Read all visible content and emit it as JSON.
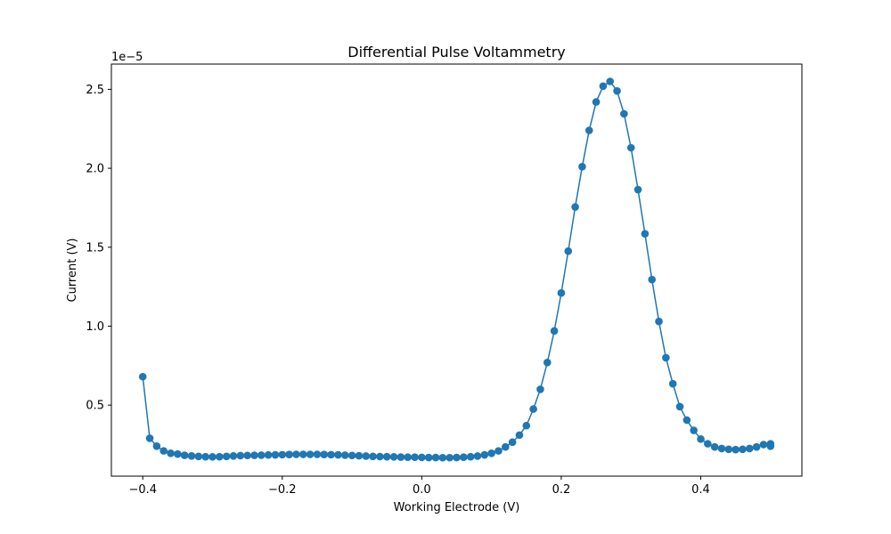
{
  "chart_data": {
    "type": "line",
    "title": "Differential Pulse Voltammetry",
    "xlabel": "Working Electrode (V)",
    "ylabel": "Current (V)",
    "y_offset_label": "1e−5",
    "xlim": [
      -0.445,
      0.545
    ],
    "ylim": [
      0.05,
      2.66
    ],
    "x_ticks": [
      -0.4,
      -0.2,
      0.0,
      0.2,
      0.4
    ],
    "x_tick_labels": [
      "−0.4",
      "−0.2",
      "0.0",
      "0.2",
      "0.4"
    ],
    "y_ticks": [
      0.5,
      1.0,
      1.5,
      2.0,
      2.5
    ],
    "y_tick_labels": [
      "0.5",
      "1.0",
      "1.5",
      "2.0",
      "2.5"
    ],
    "grid": false,
    "color": "#1f77b4",
    "marker": "circle",
    "series": [
      {
        "x": [
          -0.4,
          -0.39,
          -0.38,
          -0.37,
          -0.36,
          -0.35,
          -0.34,
          -0.33,
          -0.32,
          -0.31,
          -0.3,
          -0.29,
          -0.28,
          -0.27,
          -0.26,
          -0.25,
          -0.24,
          -0.23,
          -0.22,
          -0.21,
          -0.2,
          -0.19,
          -0.18,
          -0.17,
          -0.16,
          -0.15,
          -0.14,
          -0.13,
          -0.12,
          -0.11,
          -0.1,
          -0.09,
          -0.08,
          -0.07,
          -0.06,
          -0.05,
          -0.04,
          -0.03,
          -0.02,
          -0.01,
          0.0,
          0.01,
          0.02,
          0.03,
          0.04,
          0.05,
          0.06,
          0.07,
          0.08,
          0.09,
          0.1,
          0.11,
          0.12,
          0.13,
          0.14,
          0.15,
          0.16,
          0.17,
          0.18,
          0.19,
          0.2,
          0.21,
          0.22,
          0.23,
          0.24,
          0.25,
          0.26,
          0.27,
          0.28,
          0.29,
          0.3,
          0.31,
          0.32,
          0.33,
          0.34,
          0.35,
          0.36,
          0.37,
          0.38,
          0.39,
          0.4,
          0.41,
          0.42,
          0.43,
          0.44,
          0.45,
          0.46,
          0.47,
          0.48,
          0.49,
          0.5,
          0.5
        ],
        "y": [
          0.68,
          0.29,
          0.24,
          0.21,
          0.195,
          0.19,
          0.182,
          0.178,
          0.175,
          0.173,
          0.172,
          0.173,
          0.175,
          0.178,
          0.18,
          0.181,
          0.182,
          0.183,
          0.184,
          0.185,
          0.186,
          0.187,
          0.188,
          0.188,
          0.188,
          0.188,
          0.187,
          0.186,
          0.185,
          0.183,
          0.181,
          0.179,
          0.177,
          0.175,
          0.174,
          0.173,
          0.172,
          0.171,
          0.17,
          0.17,
          0.169,
          0.168,
          0.168,
          0.167,
          0.167,
          0.168,
          0.17,
          0.173,
          0.177,
          0.185,
          0.195,
          0.21,
          0.235,
          0.265,
          0.31,
          0.37,
          0.475,
          0.6,
          0.77,
          0.97,
          1.21,
          1.475,
          1.755,
          2.01,
          2.24,
          2.42,
          2.52,
          2.55,
          2.49,
          2.345,
          2.13,
          1.865,
          1.585,
          1.295,
          1.03,
          0.8,
          0.635,
          0.49,
          0.405,
          0.34,
          0.285,
          0.255,
          0.235,
          0.225,
          0.22,
          0.218,
          0.22,
          0.225,
          0.235,
          0.25,
          0.255,
          0.24
        ]
      }
    ]
  }
}
